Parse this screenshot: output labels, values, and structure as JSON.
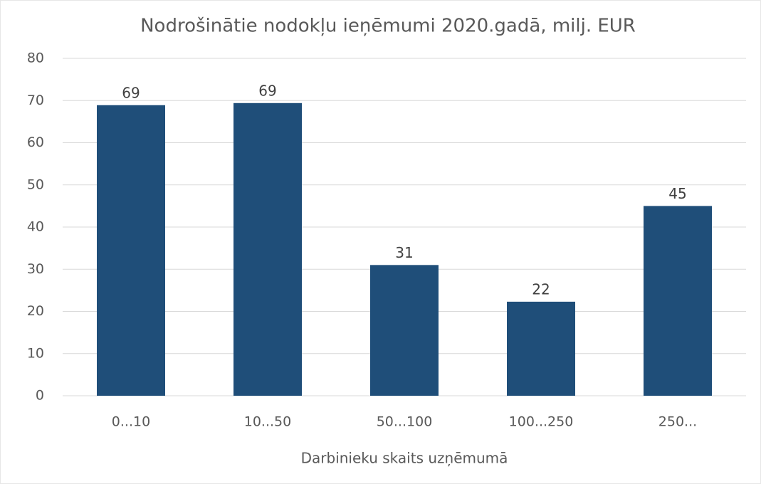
{
  "chart_data": {
    "type": "bar",
    "title": "Nodrošinātie nodokļu ieņēmumi 2020.gadā, milj. EUR",
    "x_label": "Darbinieku skaits uzņēmumā",
    "categories": [
      "0...10",
      "10...50",
      "50...100",
      "100...250",
      "250..."
    ],
    "values": [
      68.9,
      69.4,
      31,
      22.3,
      45
    ],
    "value_labels": [
      "69",
      "69",
      "31",
      "22",
      "45"
    ],
    "color": "#1f4e79",
    "ylim": [
      0,
      80
    ],
    "yticks": [
      0,
      10,
      20,
      30,
      40,
      50,
      60,
      70,
      80
    ],
    "grid": true
  }
}
